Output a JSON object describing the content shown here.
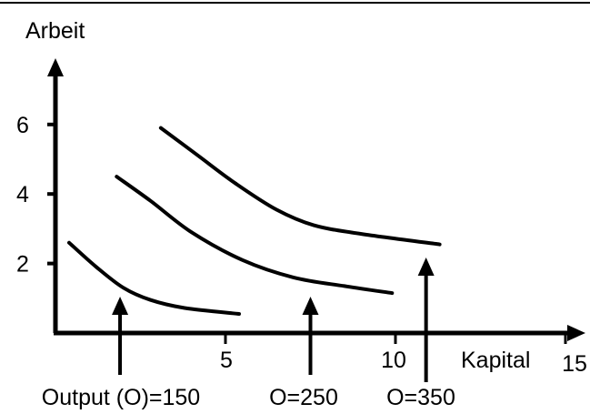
{
  "chart_data": {
    "type": "line",
    "xlabel": "Kapital",
    "ylabel": "Arbeit",
    "xlim": [
      0,
      15
    ],
    "ylim": [
      0,
      7
    ],
    "x_ticks": [
      {
        "value": 5,
        "label": "5"
      },
      {
        "value": 10,
        "label": "10"
      },
      {
        "value": 15,
        "label": "15"
      }
    ],
    "y_ticks": [
      {
        "value": 2,
        "label": "2"
      },
      {
        "value": 4,
        "label": "4"
      },
      {
        "value": 6,
        "label": "6"
      }
    ],
    "grid": false,
    "series": [
      {
        "name": "Output (O)=150",
        "points": [
          [
            0.4,
            2.6
          ],
          [
            1.2,
            1.9
          ],
          [
            2.0,
            1.3
          ],
          [
            2.8,
            0.95
          ],
          [
            3.8,
            0.72
          ],
          [
            5.4,
            0.55
          ]
        ]
      },
      {
        "name": "O=250",
        "points": [
          [
            1.8,
            4.5
          ],
          [
            2.8,
            3.8
          ],
          [
            4.0,
            2.9
          ],
          [
            5.5,
            2.1
          ],
          [
            7.0,
            1.6
          ],
          [
            8.5,
            1.35
          ],
          [
            9.9,
            1.15
          ]
        ]
      },
      {
        "name": "O=350",
        "points": [
          [
            3.1,
            5.9
          ],
          [
            4.2,
            5.1
          ],
          [
            5.3,
            4.3
          ],
          [
            6.5,
            3.55
          ],
          [
            7.6,
            3.1
          ],
          [
            9.0,
            2.85
          ],
          [
            11.3,
            2.55
          ]
        ]
      }
    ],
    "annotations": [
      {
        "text": "Output (O)=150",
        "arrow_x": 1.9
      },
      {
        "text": "O=250",
        "arrow_x": 7.5
      },
      {
        "text": "O=350",
        "arrow_x": 10.9
      }
    ],
    "line_color": "#000000"
  }
}
